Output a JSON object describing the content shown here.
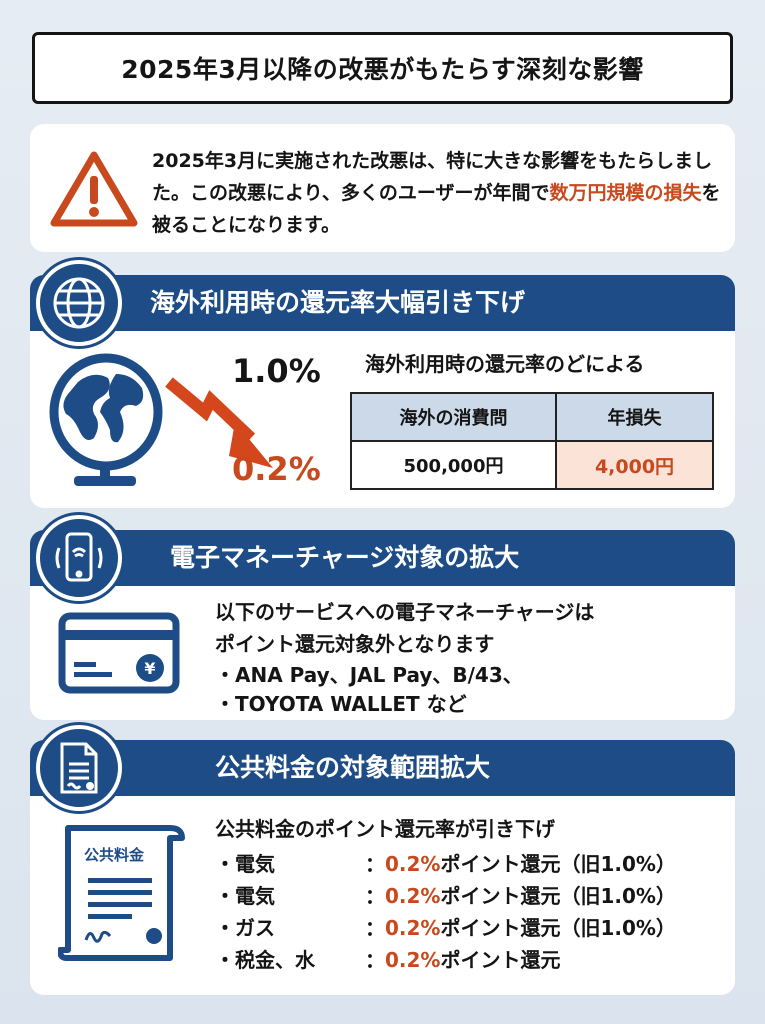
{
  "title": "2025年3月以降の改悪がもたらす深刻な影響",
  "intro": {
    "icon": "warning-icon",
    "text_before": "2025年3月に実施された改悪は、特に大きな影響をもたらしました。この改悪により、多くのユーザーが年間で",
    "highlight": "数万円規模の損失",
    "text_after": "を被ることになります。"
  },
  "sections": [
    {
      "title": "海外利用時の還元率大幅引き下げ",
      "icon": "globe-icon",
      "old_rate": "1.0%",
      "new_rate": "0.2%",
      "table_caption": "海外利用時の還元率のどによる",
      "table_headers": [
        "海外の消費問",
        "年損失"
      ],
      "table_rows": [
        [
          "500,000円",
          "4,000円"
        ]
      ]
    },
    {
      "title": "電子マネーチャージ対象の拡大",
      "icon": "smartphone-nfc-icon",
      "lines": [
        "以下のサービスへの電子マネーチャージは",
        "ポイント還元対象外となります"
      ],
      "bullets": [
        "・ANA Pay、JAL Pay、B/43、",
        "・TOYOTA WALLET  など"
      ]
    },
    {
      "title": "公共料金の対象範囲拡大",
      "icon": "document-icon",
      "doc_label": "公共料金",
      "lead": "公共料金のポイント還元率が引き下げ",
      "items": [
        {
          "label": "・電気",
          "sep": "：",
          "rate": "0.2%",
          "text": "ポイント還元",
          "old": "（旧1.0%）"
        },
        {
          "label": "・電気",
          "sep": "：",
          "rate": "0.2%",
          "text": "ポイント還元",
          "old": "（旧1.0%）"
        },
        {
          "label": "・ガス",
          "sep": "：",
          "rate": "0.2%",
          "text": "ポイント還元",
          "old": "（旧1.0%）"
        },
        {
          "label": "・税金、水",
          "sep": "：",
          "rate": "0.2%",
          "text": "ポイント還元",
          "old": ""
        }
      ]
    }
  ],
  "colors": {
    "navy": "#1d4c86",
    "accent": "#c8491d",
    "highlight_cell": "#fbe3d8"
  }
}
